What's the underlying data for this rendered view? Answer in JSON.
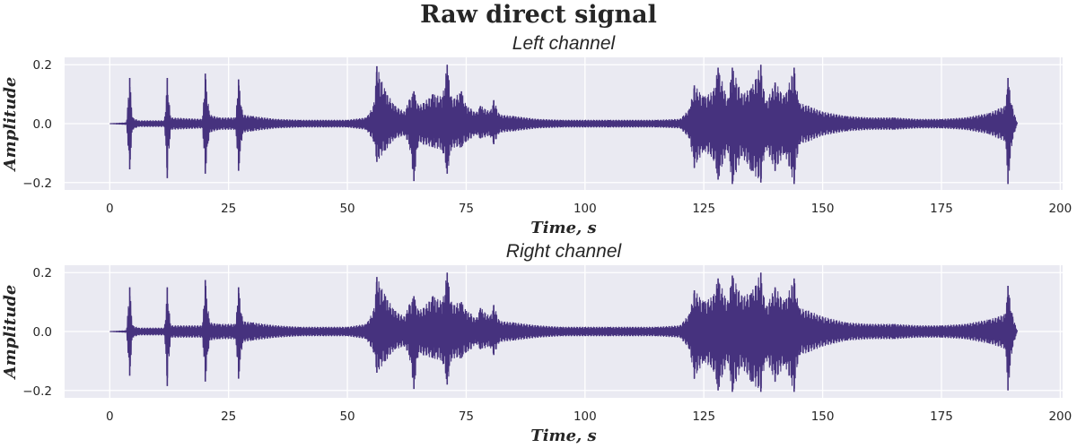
{
  "figure": {
    "title": "Raw direct signal",
    "background": "#ffffff",
    "plot_background": "#EAEAF2",
    "grid_color": "#ffffff",
    "line_color": "#46327E"
  },
  "chart_data": [
    {
      "type": "line",
      "title": "Left channel",
      "xlabel": "Time, s",
      "ylabel": "Amplitude",
      "xlim": [
        -9.5,
        200.5
      ],
      "ylim": [
        -0.225,
        0.225
      ],
      "xticks": [
        0,
        25,
        50,
        75,
        100,
        125,
        150,
        175,
        200
      ],
      "xtick_labels": [
        "0",
        "25",
        "50",
        "75",
        "100",
        "125",
        "150",
        "175",
        "200"
      ],
      "yticks": [
        -0.2,
        0.0,
        0.2
      ],
      "ytick_labels": [
        "−0.2",
        "0.0",
        "0.2"
      ],
      "grid": true,
      "series": [
        {
          "color": "#46327E",
          "envelope": {
            "t": [
              0,
              3.5,
              4.2,
              4.8,
              6,
              11.5,
              12.1,
              12.8,
              19.5,
              20.1,
              21,
              23,
              26.5,
              27.1,
              28,
              30,
              35,
              40,
              45,
              50,
              54,
              55.5,
              56.2,
              58,
              60,
              62,
              63,
              64,
              65,
              66,
              68,
              70,
              71,
              72,
              74,
              75,
              76,
              77,
              78,
              80,
              80.8,
              82,
              85,
              90,
              95,
              100,
              105,
              110,
              115,
              120,
              122,
              123,
              125,
              127,
              128,
              130,
              131,
              133,
              135,
              137,
              138,
              140,
              142,
              144,
              145,
              147,
              150,
              155,
              160,
              165,
              170,
              175,
              180,
              185,
              187,
              188.5,
              189,
              190,
              191
            ],
            "upper": [
              0,
              0.003,
              0.155,
              0.02,
              0.01,
              0.01,
              0.155,
              0.02,
              0.015,
              0.17,
              0.03,
              0.02,
              0.02,
              0.15,
              0.03,
              0.025,
              0.015,
              0.012,
              0.012,
              0.012,
              0.02,
              0.06,
              0.195,
              0.11,
              0.06,
              0.04,
              0.08,
              0.11,
              0.06,
              0.07,
              0.1,
              0.09,
              0.2,
              0.08,
              0.11,
              0.06,
              0.05,
              0.035,
              0.06,
              0.04,
              0.08,
              0.03,
              0.025,
              0.015,
              0.012,
              0.012,
              0.012,
              0.012,
              0.012,
              0.015,
              0.05,
              0.13,
              0.09,
              0.11,
              0.19,
              0.08,
              0.19,
              0.1,
              0.12,
              0.2,
              0.07,
              0.14,
              0.09,
              0.19,
              0.07,
              0.06,
              0.04,
              0.025,
              0.02,
              0.02,
              0.015,
              0.015,
              0.02,
              0.035,
              0.05,
              0.06,
              0.155,
              0.05,
              0
            ],
            "lower": [
              0,
              -0.003,
              -0.155,
              -0.02,
              -0.01,
              -0.01,
              -0.185,
              -0.02,
              -0.015,
              -0.17,
              -0.03,
              -0.02,
              -0.02,
              -0.16,
              -0.03,
              -0.025,
              -0.015,
              -0.012,
              -0.012,
              -0.012,
              -0.02,
              -0.06,
              -0.13,
              -0.09,
              -0.05,
              -0.04,
              -0.07,
              -0.195,
              -0.06,
              -0.07,
              -0.08,
              -0.09,
              -0.17,
              -0.08,
              -0.08,
              -0.06,
              -0.05,
              -0.035,
              -0.05,
              -0.04,
              -0.07,
              -0.03,
              -0.025,
              -0.015,
              -0.012,
              -0.012,
              -0.012,
              -0.012,
              -0.012,
              -0.015,
              -0.05,
              -0.15,
              -0.09,
              -0.12,
              -0.19,
              -0.09,
              -0.205,
              -0.11,
              -0.16,
              -0.2,
              -0.08,
              -0.16,
              -0.1,
              -0.205,
              -0.07,
              -0.06,
              -0.04,
              -0.025,
              -0.02,
              -0.02,
              -0.015,
              -0.015,
              -0.02,
              -0.035,
              -0.05,
              -0.06,
              -0.205,
              -0.05,
              0
            ]
          }
        }
      ]
    },
    {
      "type": "line",
      "title": "Right channel",
      "xlabel": "Time, s",
      "ylabel": "Amplitude",
      "xlim": [
        -9.5,
        200.5
      ],
      "ylim": [
        -0.225,
        0.225
      ],
      "xticks": [
        0,
        25,
        50,
        75,
        100,
        125,
        150,
        175,
        200
      ],
      "xtick_labels": [
        "0",
        "25",
        "50",
        "75",
        "100",
        "125",
        "150",
        "175",
        "200"
      ],
      "yticks": [
        -0.2,
        0.0,
        0.2
      ],
      "ytick_labels": [
        "−0.2",
        "0.0",
        "0.2"
      ],
      "grid": true,
      "series": [
        {
          "color": "#46327E",
          "envelope": {
            "t": [
              0,
              3.5,
              4.2,
              4.8,
              6,
              11.5,
              12.1,
              12.8,
              19.5,
              20.1,
              21,
              23,
              26.5,
              27.1,
              28,
              30,
              35,
              40,
              45,
              50,
              54,
              55.5,
              56.2,
              58,
              60,
              62,
              63,
              64,
              65,
              66,
              68,
              70,
              71,
              72,
              74,
              75,
              76,
              77,
              78,
              80,
              80.8,
              82,
              85,
              90,
              95,
              100,
              105,
              110,
              115,
              120,
              122,
              123,
              125,
              127,
              128,
              130,
              131,
              133,
              135,
              137,
              138,
              140,
              142,
              144,
              145,
              147,
              150,
              155,
              160,
              165,
              170,
              175,
              180,
              185,
              187,
              188.5,
              189,
              190,
              191
            ],
            "upper": [
              0,
              0.003,
              0.15,
              0.02,
              0.012,
              0.012,
              0.15,
              0.02,
              0.02,
              0.175,
              0.03,
              0.025,
              0.025,
              0.15,
              0.035,
              0.03,
              0.02,
              0.015,
              0.015,
              0.015,
              0.025,
              0.07,
              0.185,
              0.12,
              0.07,
              0.05,
              0.09,
              0.12,
              0.07,
              0.08,
              0.12,
              0.1,
              0.2,
              0.09,
              0.1,
              0.07,
              0.06,
              0.04,
              0.08,
              0.05,
              0.09,
              0.035,
              0.03,
              0.02,
              0.015,
              0.015,
              0.015,
              0.015,
              0.015,
              0.02,
              0.06,
              0.14,
              0.1,
              0.12,
              0.18,
              0.1,
              0.19,
              0.12,
              0.13,
              0.2,
              0.08,
              0.15,
              0.1,
              0.18,
              0.08,
              0.07,
              0.05,
              0.03,
              0.025,
              0.025,
              0.02,
              0.02,
              0.025,
              0.04,
              0.05,
              0.06,
              0.155,
              0.05,
              0
            ],
            "lower": [
              0,
              -0.003,
              -0.15,
              -0.02,
              -0.012,
              -0.012,
              -0.185,
              -0.02,
              -0.02,
              -0.17,
              -0.03,
              -0.025,
              -0.025,
              -0.16,
              -0.035,
              -0.03,
              -0.02,
              -0.015,
              -0.015,
              -0.015,
              -0.025,
              -0.07,
              -0.14,
              -0.1,
              -0.06,
              -0.05,
              -0.08,
              -0.195,
              -0.07,
              -0.08,
              -0.09,
              -0.1,
              -0.18,
              -0.09,
              -0.09,
              -0.07,
              -0.06,
              -0.04,
              -0.06,
              -0.05,
              -0.08,
              -0.035,
              -0.03,
              -0.02,
              -0.015,
              -0.015,
              -0.015,
              -0.015,
              -0.015,
              -0.02,
              -0.06,
              -0.16,
              -0.1,
              -0.13,
              -0.2,
              -0.1,
              -0.205,
              -0.12,
              -0.17,
              -0.205,
              -0.09,
              -0.17,
              -0.11,
              -0.205,
              -0.08,
              -0.07,
              -0.05,
              -0.03,
              -0.025,
              -0.025,
              -0.02,
              -0.02,
              -0.025,
              -0.04,
              -0.05,
              -0.06,
              -0.2,
              -0.05,
              0
            ]
          }
        }
      ]
    }
  ]
}
